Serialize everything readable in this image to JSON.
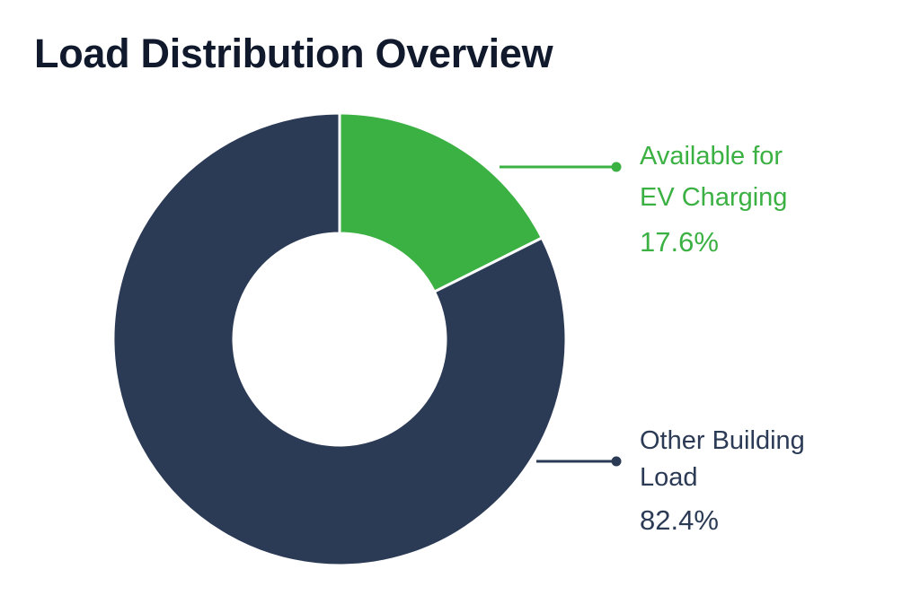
{
  "title": "Load Distribution Overview",
  "chart_data": {
    "type": "pie",
    "title": "Load Distribution Overview",
    "slices": [
      {
        "label_lines": [
          "Available for",
          "EV Charging"
        ],
        "value": 17.6,
        "display_value": "17.6%",
        "color": "#3bb143"
      },
      {
        "label_lines": [
          "Other Building",
          "Load"
        ],
        "value": 82.4,
        "display_value": "82.4%",
        "color": "#2b3a55"
      }
    ],
    "donut": true,
    "legend": "right, callout labels"
  }
}
